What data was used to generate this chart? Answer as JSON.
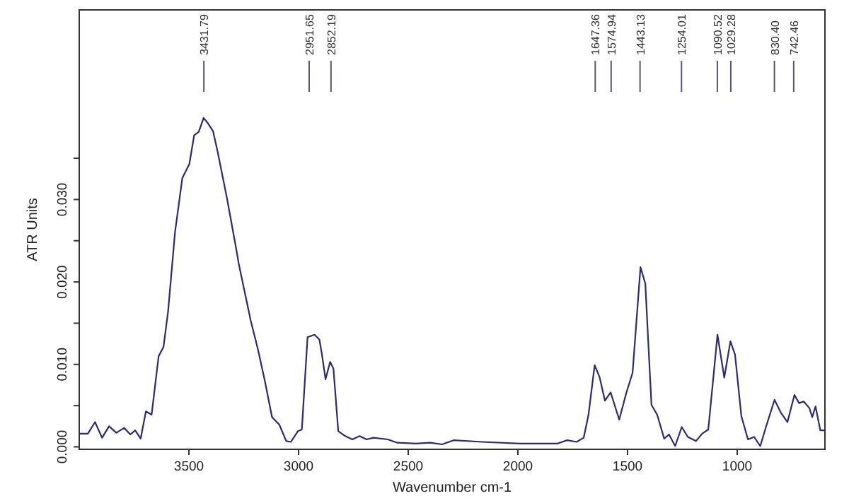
{
  "chart_data": {
    "type": "line",
    "xlabel": "Wavenumber cm-1",
    "ylabel": "ATR Units",
    "xlim": [
      4000,
      600
    ],
    "xticks": [
      3500,
      3000,
      2500,
      2000,
      1500,
      1000
    ],
    "ylim": [
      -0.0003,
      0.053
    ],
    "yticks": [
      {
        "value": 0,
        "label": "0.000"
      },
      {
        "value": 0.005,
        "label": null
      },
      {
        "value": 0.01,
        "label": "0.010"
      },
      {
        "value": 0.015,
        "label": null
      },
      {
        "value": 0.02,
        "label": "0.020"
      },
      {
        "value": 0.025,
        "label": null
      },
      {
        "value": 0.03,
        "label": "0.030"
      },
      {
        "value": 0.035,
        "label": null
      }
    ],
    "grid": false,
    "marker": "none",
    "line_style": "solid",
    "x": [
      4000,
      3961,
      3928,
      3896,
      3864,
      3831,
      3795,
      3767,
      3745,
      3720,
      3696,
      3670,
      3638,
      3616,
      3595,
      3563,
      3530,
      3498,
      3476,
      3455,
      3433,
      3412,
      3390,
      3369,
      3326,
      3287,
      3272,
      3218,
      3185,
      3153,
      3121,
      3088,
      3056,
      3035,
      3003,
      2985,
      2959,
      2927,
      2905,
      2894,
      2877,
      2856,
      2841,
      2819,
      2787,
      2755,
      2722,
      2690,
      2658,
      2593,
      2550,
      2464,
      2400,
      2346,
      2293,
      2163,
      1991,
      1819,
      1775,
      1732,
      1700,
      1678,
      1650,
      1628,
      1603,
      1577,
      1538,
      1505,
      1477,
      1441,
      1419,
      1391,
      1365,
      1333,
      1311,
      1283,
      1253,
      1225,
      1188,
      1160,
      1132,
      1111,
      1090,
      1059,
      1031,
      1010,
      981,
      951,
      923,
      895,
      869,
      830,
      800,
      771,
      739,
      718,
      697,
      671,
      658,
      643,
      621,
      600
    ],
    "series": [
      {
        "color": "#2b2b70",
        "values": [
          0.0016,
          0.0016,
          0.003,
          0.0011,
          0.0025,
          0.0017,
          0.0023,
          0.0015,
          0.002,
          0.001,
          0.0043,
          0.0039,
          0.011,
          0.0121,
          0.0164,
          0.0261,
          0.0326,
          0.0343,
          0.0378,
          0.0382,
          0.0399,
          0.0392,
          0.0383,
          0.0358,
          0.0301,
          0.0244,
          0.0221,
          0.0153,
          0.0118,
          0.0079,
          0.0036,
          0.0027,
          0.0007,
          0.0006,
          0.0019,
          0.0021,
          0.0133,
          0.0136,
          0.013,
          0.0113,
          0.0082,
          0.0103,
          0.0095,
          0.0019,
          0.0013,
          0.0009,
          0.0013,
          0.0009,
          0.0011,
          0.0009,
          0.0005,
          0.0004,
          0.0005,
          0.0003,
          0.0008,
          0.0006,
          0.0004,
          0.0004,
          0.0008,
          0.0006,
          0.0011,
          0.0039,
          0.0099,
          0.0085,
          0.0056,
          0.0066,
          0.0033,
          0.0066,
          0.009,
          0.0218,
          0.0198,
          0.0051,
          0.0039,
          0.001,
          0.0015,
          0.0001,
          0.0024,
          0.0012,
          0.0007,
          0.0016,
          0.0021,
          0.0078,
          0.0136,
          0.0084,
          0.0128,
          0.0112,
          0.0037,
          0.0009,
          0.0012,
          0.0001,
          0.0024,
          0.0057,
          0.0041,
          0.003,
          0.0063,
          0.0053,
          0.0055,
          0.0047,
          0.0036,
          0.0049,
          0.002,
          0.002
        ]
      }
    ],
    "ref_lines": [
      {
        "axis": "x",
        "value": 3431.79,
        "label": "3431.79",
        "color": "#55557a"
      },
      {
        "axis": "x",
        "value": 2951.65,
        "label": "2951.65",
        "color": "#55557a"
      },
      {
        "axis": "x",
        "value": 2852.19,
        "label": "2852.19",
        "color": "#55557a"
      },
      {
        "axis": "x",
        "value": 1647.36,
        "label": "1647.36",
        "color": "#55557a"
      },
      {
        "axis": "x",
        "value": 1574.94,
        "label": "1574.94",
        "color": "#55557a"
      },
      {
        "axis": "x",
        "value": 1443.13,
        "label": "1443.13",
        "color": "#55557a"
      },
      {
        "axis": "x",
        "value": 1254.01,
        "label": "1254.01",
        "color": "#55557a"
      },
      {
        "axis": "x",
        "value": 1090.52,
        "label": "1090.52",
        "color": "#55557a"
      },
      {
        "axis": "x",
        "value": 1029.28,
        "label": "1029.28",
        "color": "#55557a"
      },
      {
        "axis": "x",
        "value": 830.4,
        "label": "830.40",
        "color": "#55557a"
      },
      {
        "axis": "x",
        "value": 742.46,
        "label": "742.46",
        "color": "#55557a"
      }
    ]
  }
}
